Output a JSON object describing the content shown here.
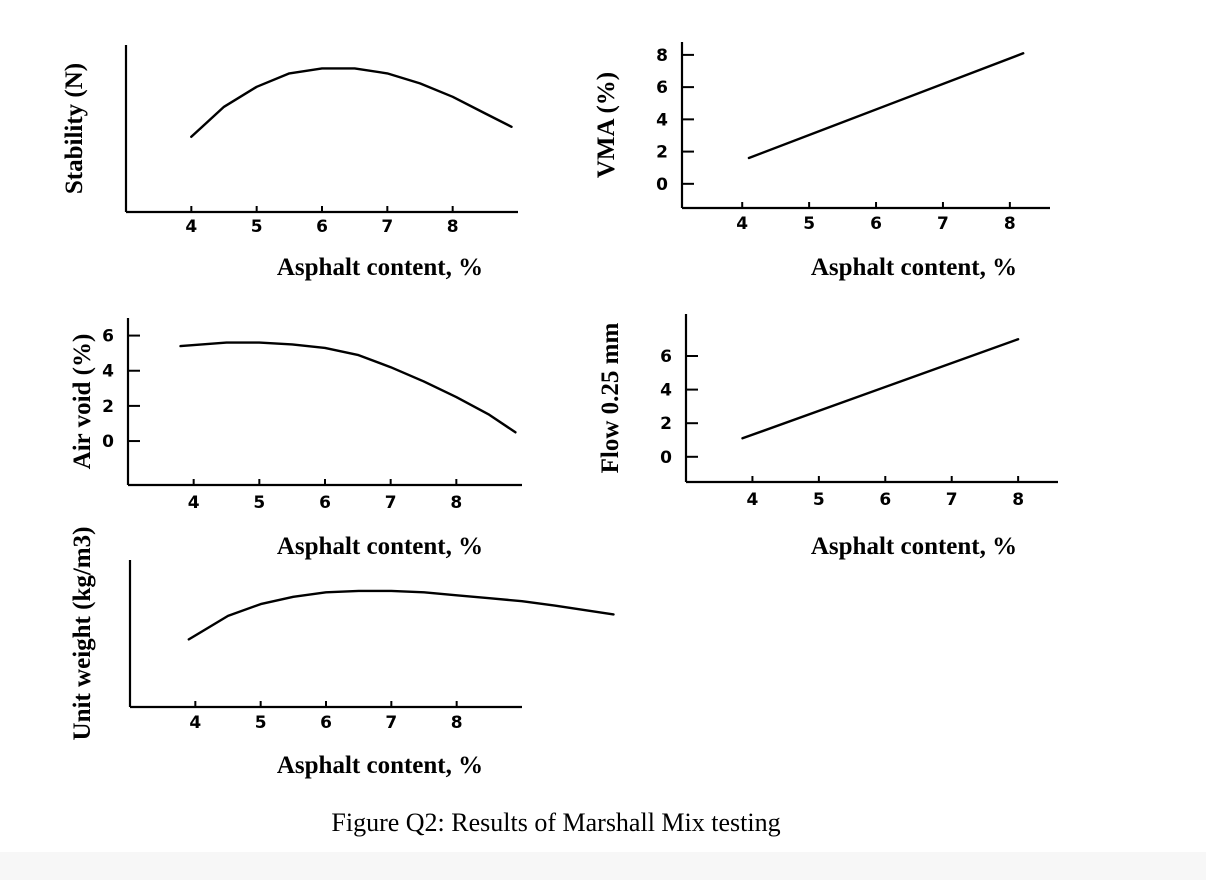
{
  "caption": "Figure Q2: Results of Marshall Mix testing",
  "colors": {
    "line": "#000000",
    "background": "#ffffff"
  },
  "chart_data": [
    {
      "id": "stability",
      "type": "line",
      "ylabel": "Stability (N)",
      "xlabel": "Asphalt content, %",
      "x_ticks": [
        4,
        5,
        6,
        7,
        8
      ],
      "y_ticks": [],
      "xlim": [
        3,
        9
      ],
      "ylim": [
        0,
        10
      ],
      "x": [
        4.0,
        4.5,
        5.0,
        5.5,
        6.0,
        6.5,
        7.0,
        7.5,
        8.0,
        8.5,
        8.9
      ],
      "y": [
        4.5,
        6.3,
        7.5,
        8.3,
        8.6,
        8.6,
        8.3,
        7.7,
        6.9,
        5.9,
        5.1
      ]
    },
    {
      "id": "vma",
      "type": "line",
      "ylabel": "VMA (%)",
      "xlabel": "Asphalt content, %",
      "x_ticks": [
        4,
        5,
        6,
        7,
        8
      ],
      "y_ticks": [
        0,
        2,
        4,
        6,
        8
      ],
      "xlim": [
        3.1,
        8.6
      ],
      "ylim": [
        -1.5,
        8.8
      ],
      "x": [
        4.1,
        8.2
      ],
      "y": [
        1.6,
        8.1
      ]
    },
    {
      "id": "air_void",
      "type": "line",
      "ylabel": "Air void (%)",
      "xlabel": "Asphalt content, %",
      "x_ticks": [
        4,
        5,
        6,
        7,
        8
      ],
      "y_ticks": [
        0,
        2,
        4,
        6
      ],
      "xlim": [
        3,
        9
      ],
      "ylim": [
        -2.5,
        7
      ],
      "x": [
        3.8,
        4.5,
        5.0,
        5.5,
        6.0,
        6.5,
        7.0,
        7.5,
        8.0,
        8.5,
        8.9
      ],
      "y": [
        5.4,
        5.6,
        5.6,
        5.5,
        5.3,
        4.9,
        4.2,
        3.4,
        2.5,
        1.5,
        0.5
      ]
    },
    {
      "id": "flow",
      "type": "line",
      "ylabel": "Flow 0.25 mm",
      "xlabel": "Asphalt content, %",
      "x_ticks": [
        4,
        5,
        6,
        7,
        8
      ],
      "y_ticks": [
        0,
        2,
        4,
        6
      ],
      "xlim": [
        3.0,
        8.6
      ],
      "ylim": [
        -1.5,
        8.5
      ],
      "x": [
        3.85,
        8.0
      ],
      "y": [
        1.1,
        7.0
      ]
    },
    {
      "id": "unit_weight",
      "type": "line",
      "ylabel": "Unit weight (kg/m3)",
      "xlabel": "Asphalt content, %",
      "x_ticks": [
        4,
        5,
        6,
        7,
        8
      ],
      "y_ticks": [],
      "xlim": [
        3,
        9
      ],
      "ylim": [
        0,
        10
      ],
      "x": [
        3.9,
        4.5,
        5.0,
        5.5,
        6.0,
        6.5,
        7.0,
        7.5,
        8.0,
        8.5,
        9.0,
        9.5,
        10.4
      ],
      "y": [
        4.6,
        6.2,
        7.0,
        7.5,
        7.8,
        7.9,
        7.9,
        7.8,
        7.6,
        7.4,
        7.2,
        6.9,
        6.3
      ]
    }
  ]
}
